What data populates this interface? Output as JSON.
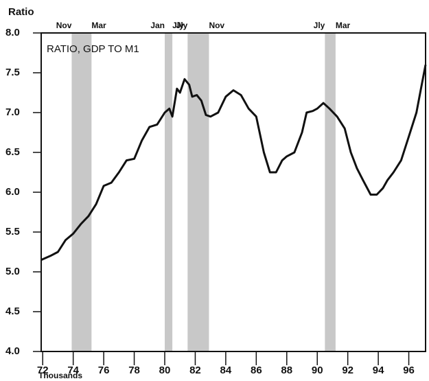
{
  "chart_data": {
    "type": "line",
    "y_label": "Ratio",
    "annotation": "RATIO, GDP TO M1",
    "footer": "Thousands",
    "x": [
      71.9,
      72.5,
      73,
      73.5,
      74,
      74.5,
      75,
      75.5,
      76,
      76.5,
      77,
      77.5,
      78,
      78.5,
      79,
      79.5,
      80,
      80.3,
      80.5,
      80.8,
      81,
      81.3,
      81.6,
      81.8,
      82.1,
      82.4,
      82.7,
      83,
      83.5,
      84,
      84.5,
      85,
      85.5,
      86,
      86.5,
      86.9,
      87.3,
      87.7,
      88,
      88.5,
      89,
      89.3,
      89.7,
      90,
      90.4,
      90.8,
      91.3,
      91.8,
      92.2,
      92.6,
      93,
      93.5,
      93.9,
      94.3,
      94.6,
      95,
      95.5,
      96,
      96.5,
      96.8,
      97.1
    ],
    "series": [
      {
        "name": "RATIO, GDP TO M1",
        "color": "#111111",
        "values": [
          5.15,
          5.2,
          5.25,
          5.4,
          5.48,
          5.6,
          5.7,
          5.85,
          6.08,
          6.12,
          6.25,
          6.4,
          6.42,
          6.65,
          6.82,
          6.85,
          7.0,
          7.05,
          6.95,
          7.3,
          7.25,
          7.42,
          7.35,
          7.2,
          7.22,
          7.15,
          6.97,
          6.95,
          7.0,
          7.2,
          7.28,
          7.22,
          7.05,
          6.95,
          6.5,
          6.25,
          6.25,
          6.4,
          6.45,
          6.5,
          6.75,
          7.0,
          7.02,
          7.05,
          7.12,
          7.05,
          6.95,
          6.8,
          6.5,
          6.3,
          6.15,
          5.97,
          5.97,
          6.05,
          6.15,
          6.25,
          6.4,
          6.7,
          7.0,
          7.3,
          7.6
        ]
      }
    ],
    "shading": [
      {
        "start": 73.9,
        "end": 75.2,
        "start_label": "Nov",
        "end_label": "Mar"
      },
      {
        "start": 80.0,
        "end": 80.5,
        "start_label": "Jan",
        "end_label": "Jly"
      },
      {
        "start": 81.5,
        "end": 82.9,
        "start_label": "Jly",
        "end_label": "Nov"
      },
      {
        "start": 90.5,
        "end": 91.2,
        "start_label": "Jly",
        "end_label": "Mar"
      }
    ],
    "shade_color": "#c8c8c8",
    "xlim": [
      71.9,
      97.1
    ],
    "xticks": [
      72,
      74,
      76,
      78,
      80,
      82,
      84,
      86,
      88,
      90,
      92,
      94,
      96
    ],
    "ylim": [
      4,
      8
    ],
    "yticks": [
      {
        "value": 4,
        "label": "4.0"
      },
      4.5,
      {
        "value": 5,
        "label": "5.0"
      },
      5.5,
      {
        "value": 6,
        "label": "6.0"
      },
      6.5,
      {
        "value": 7,
        "label": "7.0"
      },
      7.5,
      {
        "value": 8,
        "label": "8.0"
      }
    ]
  }
}
